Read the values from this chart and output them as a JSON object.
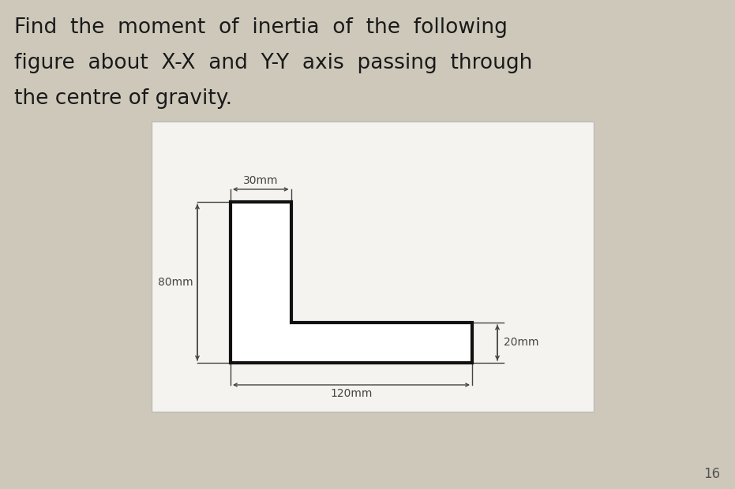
{
  "title_lines": [
    "Find  the  moment  of  inertia  of  the  following",
    "figure  about  X-X  and  Y-Y  axis  passing  through",
    "the centre of gravity."
  ],
  "title_fontsize": 19,
  "title_color": "#1a1a1a",
  "background_color": "#cdc8ba",
  "box_bg_color": "#f5f3ef",
  "box_edge_color": "#bbbbbb",
  "shape_color": "#111111",
  "shape_lw": 3.0,
  "dim_color": "#444444",
  "dim_lw": 1.0,
  "dim_fs": 10,
  "page_number": "16",
  "page_num_fs": 12,
  "dim_30mm_label": "30mm",
  "dim_80mm_label": "80mm",
  "dim_20mm_label": "20mm",
  "dim_120mm_label": "120mm",
  "fig_width": 9.31,
  "fig_height": 6.2,
  "dpi": 100
}
